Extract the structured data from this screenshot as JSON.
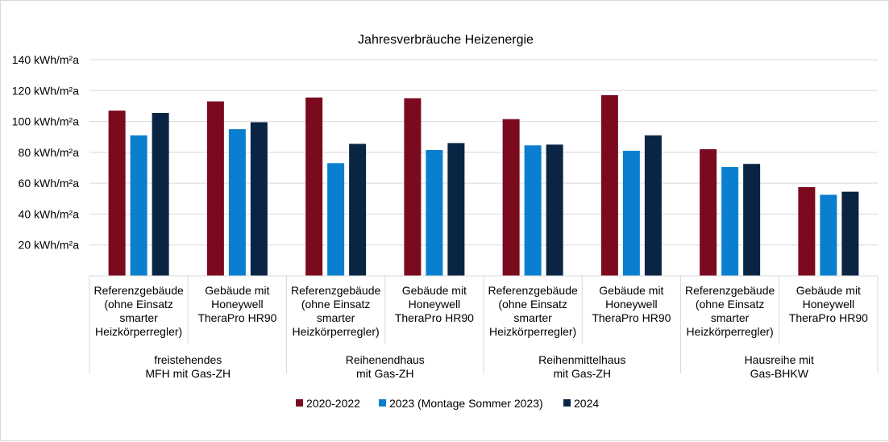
{
  "chart_data": {
    "type": "bar",
    "title": "Jahresverbräuche Heizenergie",
    "ylim": [
      0,
      140
    ],
    "yticks": [
      {
        "value": 20,
        "label": "20 kWh/m²a"
      },
      {
        "value": 40,
        "label": "40 kWh/m²a"
      },
      {
        "value": 60,
        "label": "60 kWh/m²a"
      },
      {
        "value": 80,
        "label": "80 kWh/m²a"
      },
      {
        "value": 100,
        "label": "100 kWh/m²a"
      },
      {
        "value": 120,
        "label": "120 kWh/m²a"
      },
      {
        "value": 140,
        "label": "140 kWh/m²a"
      }
    ],
    "grid": true,
    "legend_position": "bottom",
    "groups": [
      {
        "label": [
          "freistehendes",
          "MFH mit Gas-ZH"
        ],
        "categories": [
          {
            "label": [
              "Referenzgebäude",
              "(ohne Einsatz",
              "smarter",
              "Heizkörperregler)"
            ],
            "values": [
              107,
              91,
              105.5
            ]
          },
          {
            "label": [
              "Gebäude mit",
              "Honeywell",
              "TheraPro HR90"
            ],
            "values": [
              113,
              95,
              99.5
            ]
          }
        ]
      },
      {
        "label": [
          "Reihenendhaus",
          "mit Gas-ZH"
        ],
        "categories": [
          {
            "label": [
              "Referenzgebäude",
              "(ohne Einsatz",
              "smarter",
              "Heizkörperregler)"
            ],
            "values": [
              115.5,
              73,
              85.5
            ]
          },
          {
            "label": [
              "Gebäude mit",
              "Honeywell",
              "TheraPro HR90"
            ],
            "values": [
              115,
              81.5,
              86
            ]
          }
        ]
      },
      {
        "label": [
          "Reihenmittelhaus",
          "mit Gas-ZH"
        ],
        "categories": [
          {
            "label": [
              "Referenzgebäude",
              "(ohne Einsatz",
              "smarter",
              "Heizkörperregler)"
            ],
            "values": [
              101.5,
              84.5,
              85
            ]
          },
          {
            "label": [
              "Gebäude mit",
              "Honeywell",
              "TheraPro HR90"
            ],
            "values": [
              117,
              81,
              91
            ]
          }
        ]
      },
      {
        "label": [
          "Hausreihe mit",
          "Gas-BHKW"
        ],
        "categories": [
          {
            "label": [
              "Referenzgebäude",
              "(ohne Einsatz",
              "smarter",
              "Heizkörperregler)"
            ],
            "values": [
              82,
              70.5,
              72.5
            ]
          },
          {
            "label": [
              "Gebäude mit",
              "Honeywell",
              "TheraPro HR90"
            ],
            "values": [
              57.5,
              52.5,
              54.5
            ]
          }
        ]
      }
    ],
    "series": [
      {
        "name": "2020-2022",
        "color": "#7b0a1e"
      },
      {
        "name": "2023 (Montage Sommer 2023)",
        "color": "#0a7fd0"
      },
      {
        "name": "2024",
        "color": "#0a2444"
      }
    ]
  }
}
